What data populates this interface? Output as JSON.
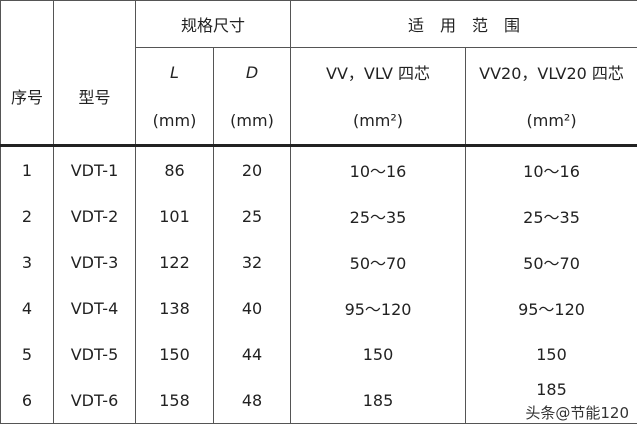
{
  "header": {
    "col_index": "序号",
    "col_model": "型号",
    "group_size": "规格尺寸",
    "group_range": "适　用　范　围",
    "col_L": "L",
    "col_D": "D",
    "unit_L": "(mm)",
    "unit_D": "(mm)",
    "col_vv": "VV，VLV 四芯",
    "col_vv20": "VV20，VLV20 四芯",
    "unit_area": "(mm²)",
    "unit_area2": "(mm²)"
  },
  "rows": [
    {
      "no": "1",
      "model": "VDT-1",
      "L": "86",
      "D": "20",
      "vv": "10～16",
      "vv20": "10～16"
    },
    {
      "no": "2",
      "model": "VDT-2",
      "L": "101",
      "D": "25",
      "vv": "25～35",
      "vv20": "25～35"
    },
    {
      "no": "3",
      "model": "VDT-3",
      "L": "122",
      "D": "32",
      "vv": "50～70",
      "vv20": "50～70"
    },
    {
      "no": "4",
      "model": "VDT-4",
      "L": "138",
      "D": "40",
      "vv": "95～120",
      "vv20": "95～120"
    },
    {
      "no": "5",
      "model": "VDT-5",
      "L": "150",
      "D": "44",
      "vv": "150",
      "vv20": "150"
    },
    {
      "no": "6",
      "model": "VDT-6",
      "L": "158",
      "D": "48",
      "vv": "185",
      "vv20": "185"
    }
  ],
  "watermark": "头条@节能120"
}
